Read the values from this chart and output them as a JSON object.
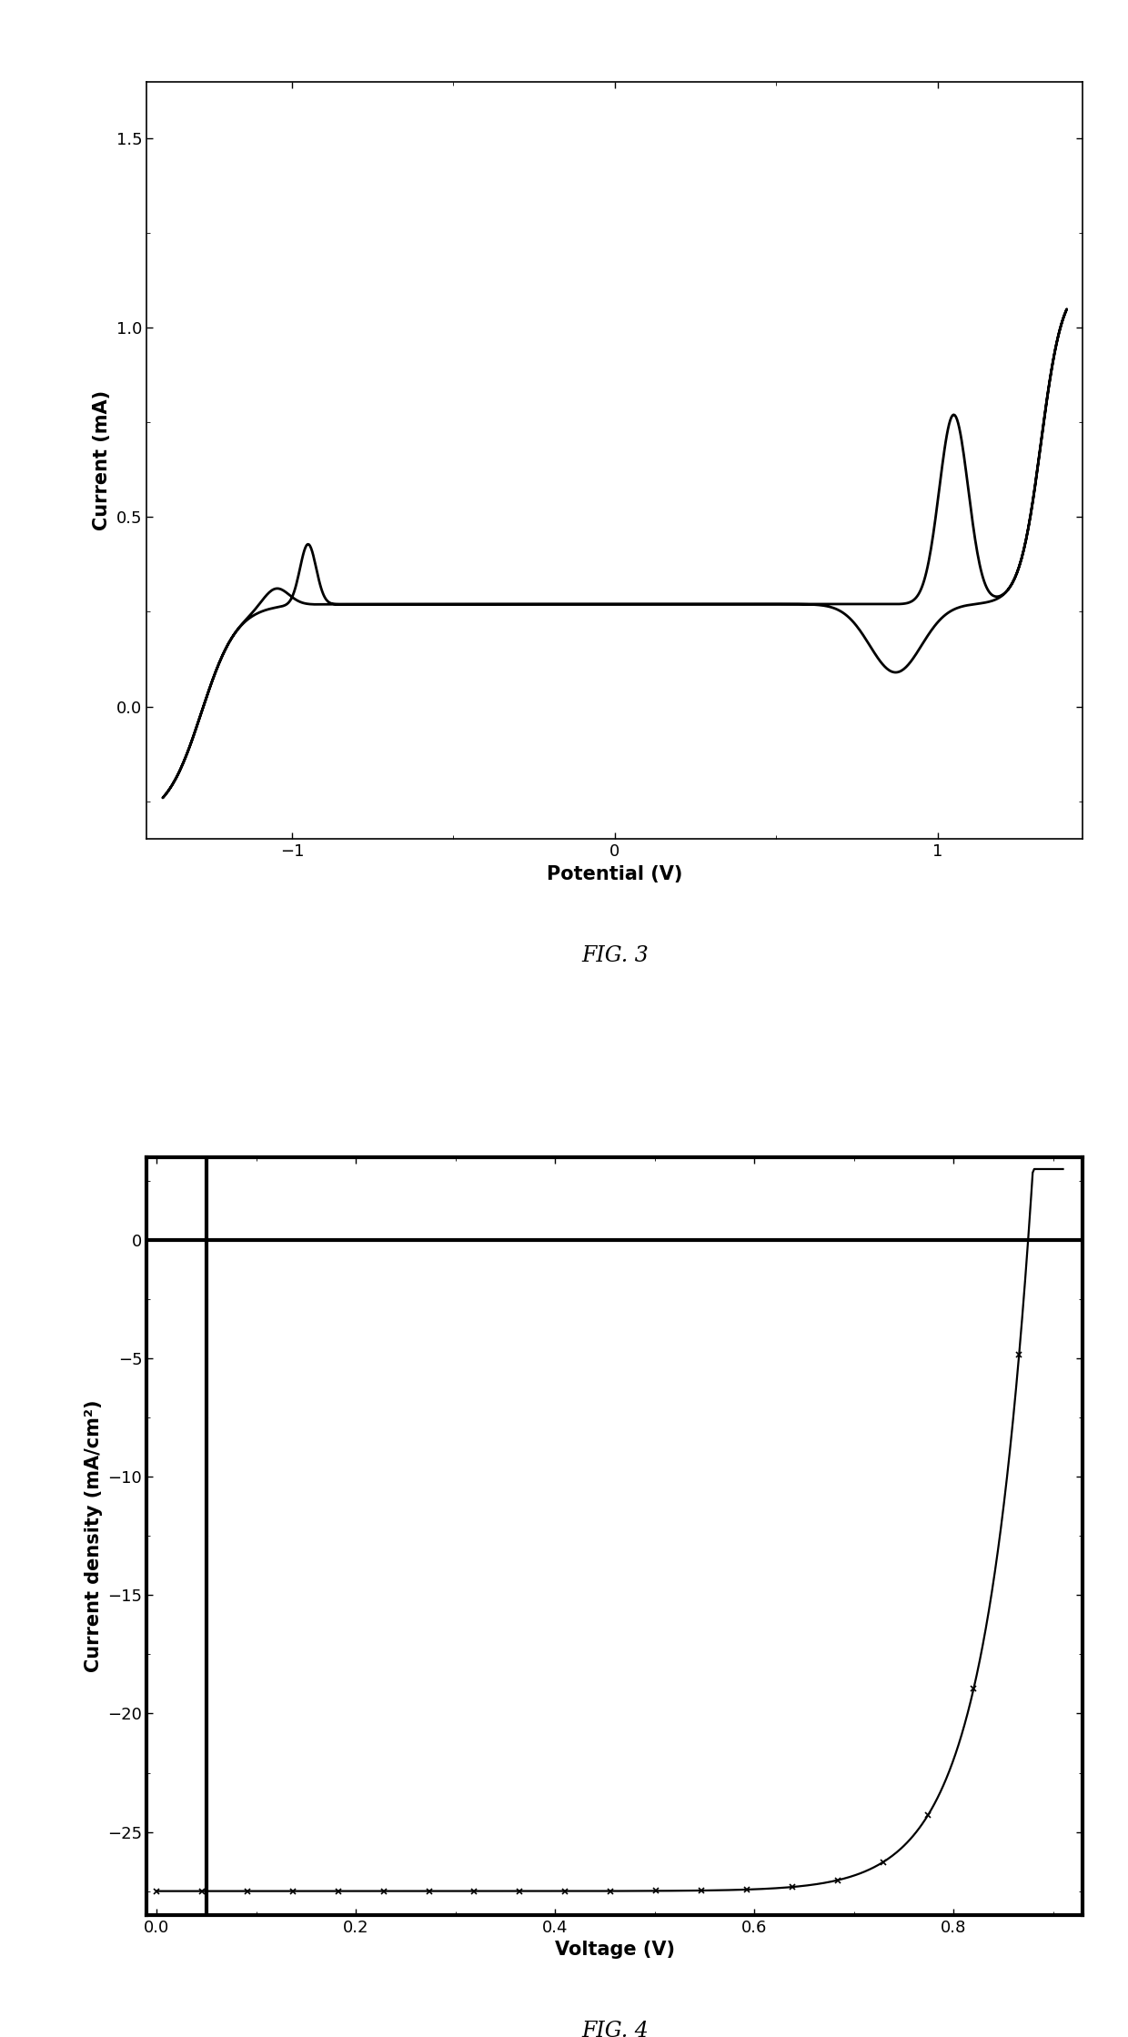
{
  "fig3": {
    "title": "FIG. 3",
    "xlabel": "Potential (V)",
    "ylabel": "Current (mA)",
    "xlim": [
      -1.45,
      1.45
    ],
    "ylim": [
      -0.35,
      1.65
    ],
    "xticks": [
      -1,
      0,
      1
    ],
    "yticks": [
      0.0,
      0.5,
      1.0,
      1.5
    ],
    "color": "#000000",
    "linewidth": 2.0
  },
  "fig4": {
    "title": "FIG. 4",
    "xlabel": "Voltage (V)",
    "ylabel": "Current density (mA/cm²)",
    "xlim": [
      -0.01,
      0.93
    ],
    "ylim": [
      -28.5,
      3.5
    ],
    "xticks": [
      0.0,
      0.2,
      0.4,
      0.6,
      0.8
    ],
    "yticks": [
      0,
      -5,
      -10,
      -15,
      -20,
      -25
    ],
    "color": "#000000",
    "linewidth": 1.6
  },
  "background_color": "#ffffff",
  "fig_label_fontsize": 17,
  "axis_label_fontsize": 15,
  "tick_fontsize": 13
}
